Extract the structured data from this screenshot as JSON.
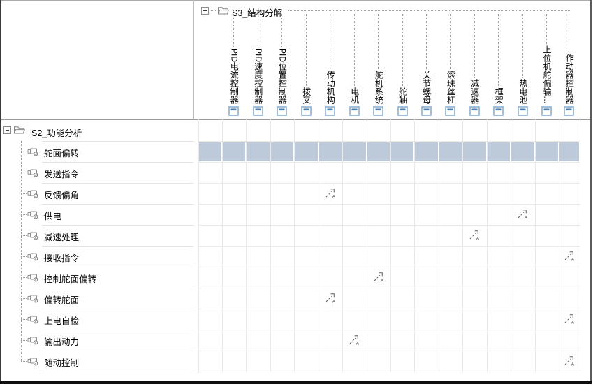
{
  "matrix_view": {
    "structure_tree": {
      "root_label": "S3_结构分解",
      "root_expander_state": "collapsed-minus",
      "columns": [
        "PID电流控制器",
        "PID速度控制器",
        "PID位置控制器",
        "拨叉",
        "传动机构",
        "电机",
        "舵机系统",
        "舵轴",
        "关节螺母",
        "滚珠丝杠",
        "减速器",
        "框架",
        "热电池",
        "上位机舵偏输…",
        "作动器控制器"
      ],
      "column_icon": "component-icon"
    },
    "function_tree": {
      "root_label": "S2_功能分析",
      "root_expander_state": "collapsed-minus",
      "rows": [
        "舵面偏转",
        "发送指令",
        "反馈偏角",
        "供电",
        "减速处理",
        "接收指令",
        "控制舵面偏转",
        "偏转舵面",
        "上电自检",
        "输出动力",
        "随动控制"
      ],
      "row_icon": "function-icon"
    },
    "matrix": {
      "highlighted_row": "舵面偏转",
      "mark_symbol": "↗A",
      "allocation_marks": [
        {
          "row": "反馈偏角",
          "column": "传动机构"
        },
        {
          "row": "供电",
          "column": "热电池"
        },
        {
          "row": "减速处理",
          "column": "减速器"
        },
        {
          "row": "接收指令",
          "column": "作动器控制器"
        },
        {
          "row": "控制舵面偏转",
          "column": "舵机系统"
        },
        {
          "row": "偏转舵面",
          "column": "传动机构"
        },
        {
          "row": "上电自检",
          "column": "作动器控制器"
        },
        {
          "row": "输出动力",
          "column": "电机"
        },
        {
          "row": "随动控制",
          "column": "作动器控制器"
        }
      ]
    },
    "colors": {
      "row_highlight": "#bccada",
      "grid_line": "#e9e9e9",
      "header_separator": "#9b9b9b",
      "component_icon_border": "#8bb0d3",
      "component_icon_bar": "#4b80b6",
      "tree_dotted_line": "#9a9a9a",
      "text": "#000000"
    }
  }
}
